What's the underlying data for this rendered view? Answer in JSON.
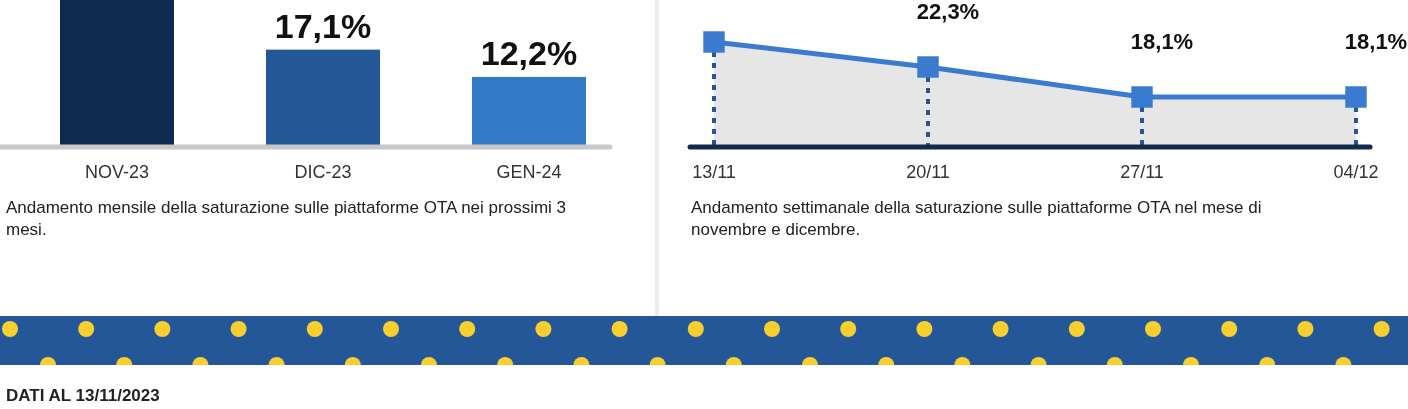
{
  "chart_data": [
    {
      "type": "bar",
      "categories": [
        "NOV-23",
        "DIC-23",
        "GEN-24"
      ],
      "values": [
        26,
        17.1,
        12.2
      ],
      "colors": [
        "#0f2a4f",
        "#235797",
        "#337bc6"
      ],
      "value_labels": [
        null,
        "17,1%",
        "12,2%"
      ],
      "ylim": [
        0,
        26
      ],
      "tick_labels": "x",
      "annotations": [
        "Andamento mensile della saturazione sulle piattaforme OTA nei prossimi 3 mesi.",
        "DATI AL 13/11/2023"
      ]
    },
    {
      "type": "area",
      "categories": [
        "13/11",
        "20/11",
        "27/11",
        "04/12"
      ],
      "series": [
        {
          "color": "#3a7bd0",
          "values": [
            25.8,
            22.3,
            18.1,
            18.1
          ],
          "value_labels": [
            null,
            "22,3%",
            "18,1%",
            "18,1%"
          ]
        }
      ],
      "tick_labels": "x",
      "marker": "square",
      "line_style": "solid",
      "annotations": [
        "Andamento settimanale della saturazione sulle piattaforme OTA nel mese di novembre e dicembre."
      ]
    }
  ]
}
